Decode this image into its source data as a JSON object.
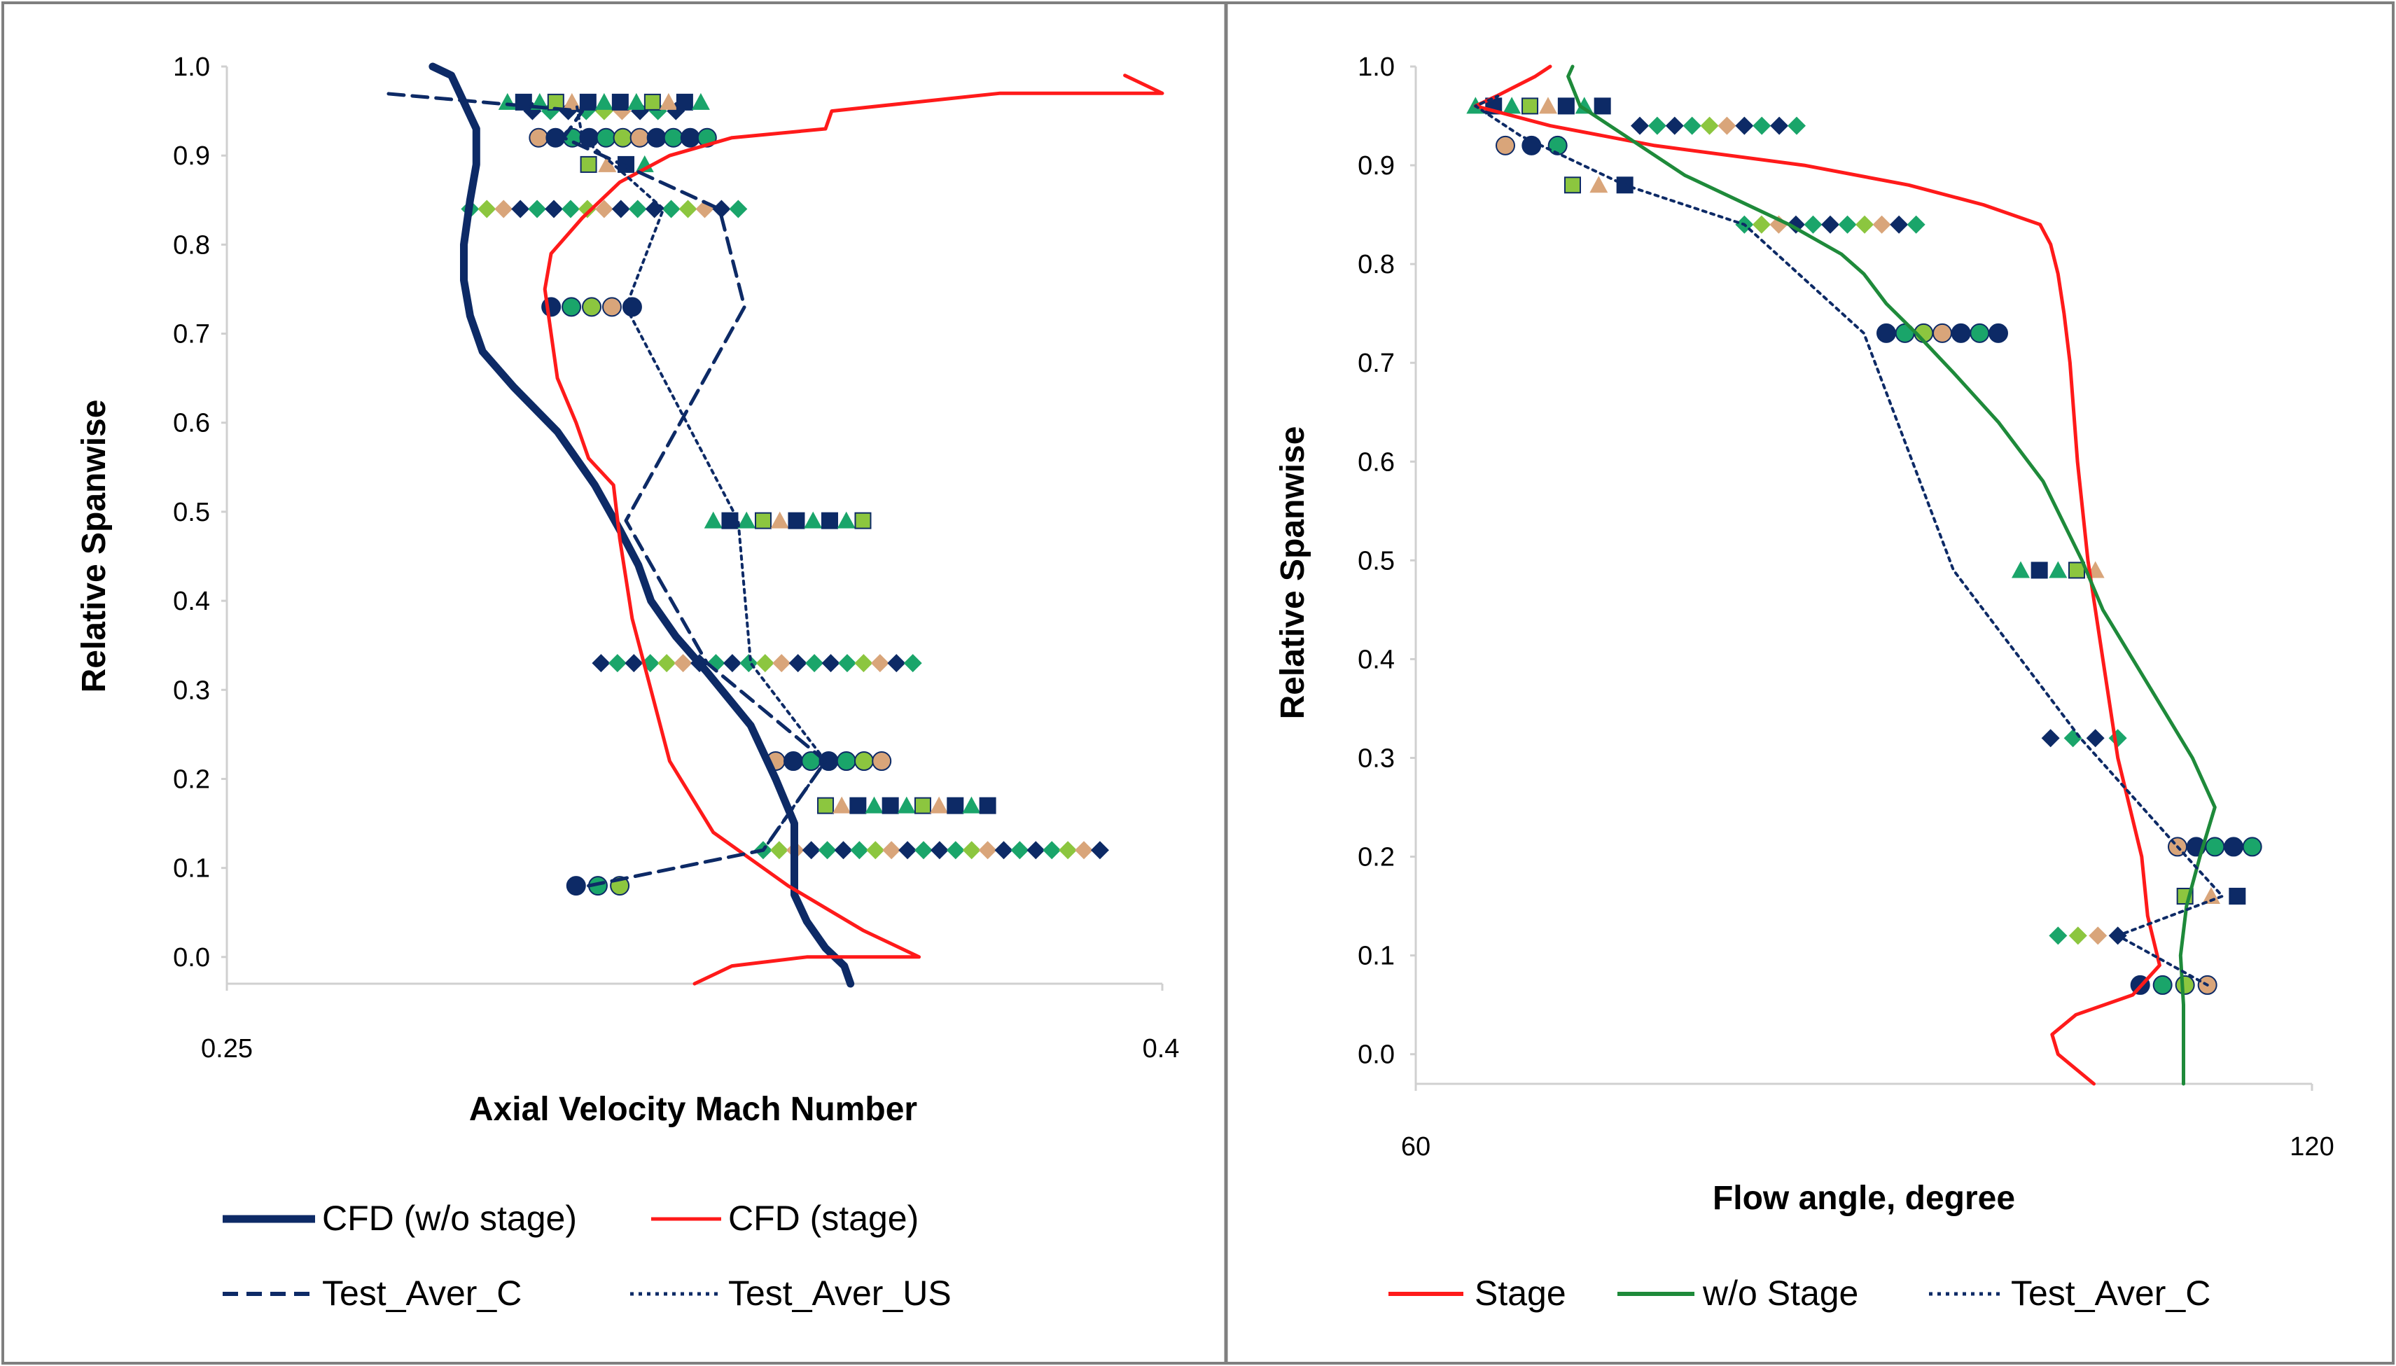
{
  "chart_data": [
    {
      "type": "line",
      "title": "",
      "xlabel": "Axial Velocity Mach Number",
      "ylabel": "Relative Spanwise",
      "xlim": [
        0.25,
        0.4
      ],
      "ylim": [
        -0.03,
        1.0
      ],
      "xticks": [
        "0.25",
        "0.4"
      ],
      "yticks": [
        "0.0",
        "0.1",
        "0.2",
        "0.3",
        "0.4",
        "0.5",
        "0.6",
        "0.7",
        "0.8",
        "0.9",
        "1.0"
      ],
      "legend_position": "bottom",
      "series": [
        {
          "name": "CFD (w/o stage)",
          "style": "solid-thick",
          "color": "#0d2a66",
          "x": [
            0.35,
            0.349,
            0.346,
            0.343,
            0.341,
            0.341,
            0.341,
            0.338,
            0.334,
            0.327,
            0.322,
            0.318,
            0.316,
            0.313,
            0.309,
            0.303,
            0.296,
            0.291,
            0.289,
            0.288,
            0.288,
            0.289,
            0.29,
            0.29,
            0.288,
            0.286,
            0.283
          ],
          "y": [
            -0.03,
            -0.01,
            0.01,
            0.04,
            0.07,
            0.1,
            0.15,
            0.2,
            0.26,
            0.32,
            0.36,
            0.4,
            0.44,
            0.48,
            0.53,
            0.59,
            0.64,
            0.68,
            0.72,
            0.76,
            0.8,
            0.85,
            0.89,
            0.93,
            0.96,
            0.99,
            1.0
          ]
        },
        {
          "name": "CFD (stage)",
          "style": "solid",
          "color": "#ff1a1a",
          "x": [
            0.325,
            0.331,
            0.343,
            0.361,
            0.352,
            0.34,
            0.328,
            0.321,
            0.318,
            0.315,
            0.313,
            0.312,
            0.308,
            0.306,
            0.303,
            0.302,
            0.301,
            0.302,
            0.307,
            0.313,
            0.321,
            0.331,
            0.346,
            0.347,
            0.374,
            0.4,
            0.394
          ],
          "y": [
            -0.03,
            -0.01,
            0.0,
            0.0,
            0.03,
            0.08,
            0.14,
            0.22,
            0.3,
            0.38,
            0.47,
            0.53,
            0.56,
            0.6,
            0.65,
            0.7,
            0.75,
            0.79,
            0.83,
            0.87,
            0.9,
            0.92,
            0.93,
            0.95,
            0.97,
            0.97,
            0.99
          ]
        },
        {
          "name": "Test_Aver_C",
          "style": "dashed",
          "color": "#0d2a66",
          "x": [
            0.308,
            0.336,
            0.346,
            0.327,
            0.314,
            0.333,
            0.329,
            0.304,
            0.307,
            0.275
          ],
          "y": [
            0.08,
            0.12,
            0.22,
            0.33,
            0.49,
            0.73,
            0.84,
            0.92,
            0.95,
            0.97
          ]
        },
        {
          "name": "Test_Aver_US",
          "style": "dotted",
          "color": "#0d2a66",
          "x": [
            0.336,
            0.346,
            0.334,
            0.332,
            0.314,
            0.32,
            0.312,
            0.307,
            0.306
          ],
          "y": [
            0.12,
            0.22,
            0.33,
            0.49,
            0.73,
            0.84,
            0.89,
            0.92,
            0.96
          ]
        }
      ]
    },
    {
      "type": "line",
      "title": "",
      "xlabel": "Flow angle, degree",
      "ylabel": "Relative Spanwise",
      "xlim": [
        60,
        120
      ],
      "ylim": [
        -0.03,
        1.0
      ],
      "xticks": [
        "60",
        "120"
      ],
      "yticks": [
        "0.0",
        "0.1",
        "0.2",
        "0.3",
        "0.4",
        "0.5",
        "0.6",
        "0.7",
        "0.8",
        "0.9",
        "1.0"
      ],
      "legend_position": "bottom",
      "series": [
        {
          "name": "Stage",
          "style": "solid",
          "color": "#ff1a1a",
          "x": [
            105.4,
            103.0,
            102.6,
            104.2,
            108.0,
            109.8,
            109.0,
            108.6,
            107.0,
            106.0,
            105.0,
            104.3,
            103.8,
            103.4,
            103.0,
            102.5,
            101.8,
            98.0,
            93.0,
            86.0,
            76.0,
            69.0,
            64.0,
            65.4,
            68.0,
            69.0
          ],
          "y": [
            -0.03,
            0.0,
            0.02,
            0.04,
            0.06,
            0.09,
            0.14,
            0.2,
            0.3,
            0.4,
            0.5,
            0.6,
            0.7,
            0.75,
            0.79,
            0.82,
            0.84,
            0.86,
            0.88,
            0.9,
            0.92,
            0.94,
            0.96,
            0.97,
            0.99,
            1.0
          ]
        },
        {
          "name": "w/o Stage",
          "style": "solid",
          "color": "#1e8a3a",
          "x": [
            111.4,
            111.4,
            111.2,
            111.6,
            112.5,
            113.5,
            112.0,
            110.0,
            108.0,
            106.0,
            104.6,
            102.0,
            99.0,
            96.0,
            93.5,
            91.5,
            90.0,
            88.5,
            85.0,
            78.0,
            74.0,
            71.0,
            70.2,
            70.5
          ],
          "y": [
            -0.03,
            0.05,
            0.1,
            0.15,
            0.2,
            0.25,
            0.3,
            0.35,
            0.4,
            0.45,
            0.5,
            0.58,
            0.64,
            0.69,
            0.73,
            0.76,
            0.79,
            0.81,
            0.84,
            0.89,
            0.93,
            0.96,
            0.99,
            1.0
          ]
        },
        {
          "name": "Test_Aver_C",
          "style": "dotted",
          "color": "#0d2a66",
          "x": [
            113.0,
            107.0,
            114.0,
            111.0,
            104.5,
            96.0,
            90.0,
            82.0,
            74.0,
            67.0,
            64.0,
            65.5
          ],
          "y": [
            0.07,
            0.12,
            0.16,
            0.21,
            0.32,
            0.49,
            0.73,
            0.84,
            0.88,
            0.93,
            0.96,
            0.97
          ]
        }
      ]
    }
  ],
  "legends": [
    {
      "items": [
        "CFD (w/o stage)",
        "CFD (stage)",
        "Test_Aver_C",
        "Test_Aver_US"
      ]
    },
    {
      "items": [
        "Stage",
        "w/o Stage",
        "Test_Aver_C"
      ]
    }
  ],
  "markers": [
    {
      "name": "left-test-markers",
      "rows": [
        {
          "y": 0.08,
          "xmin": 0.306,
          "xmax": 0.313
        },
        {
          "y": 0.12,
          "xmin": 0.336,
          "xmax": 0.39
        },
        {
          "y": 0.17,
          "xmin": 0.346,
          "xmax": 0.372
        },
        {
          "y": 0.22,
          "xmin": 0.338,
          "xmax": 0.355
        },
        {
          "y": 0.33,
          "xmin": 0.31,
          "xmax": 0.36
        },
        {
          "y": 0.49,
          "xmin": 0.328,
          "xmax": 0.352
        },
        {
          "y": 0.73,
          "xmin": 0.302,
          "xmax": 0.315
        },
        {
          "y": 0.84,
          "xmin": 0.289,
          "xmax": 0.332
        },
        {
          "y": 0.89,
          "xmin": 0.308,
          "xmax": 0.317
        },
        {
          "y": 0.92,
          "xmin": 0.3,
          "xmax": 0.327
        },
        {
          "y": 0.95,
          "xmin": 0.299,
          "xmax": 0.322
        },
        {
          "y": 0.96,
          "xmin": 0.295,
          "xmax": 0.326
        }
      ]
    },
    {
      "name": "right-test-markers",
      "rows": [
        {
          "y": 0.07,
          "xmin": 108.5,
          "xmax": 113.0
        },
        {
          "y": 0.12,
          "xmin": 103.0,
          "xmax": 107.0
        },
        {
          "y": 0.16,
          "xmin": 111.5,
          "xmax": 115.0
        },
        {
          "y": 0.21,
          "xmin": 111.0,
          "xmax": 116.0
        },
        {
          "y": 0.32,
          "xmin": 102.5,
          "xmax": 107.0
        },
        {
          "y": 0.49,
          "xmin": 100.5,
          "xmax": 105.5
        },
        {
          "y": 0.73,
          "xmin": 91.5,
          "xmax": 99.0
        },
        {
          "y": 0.84,
          "xmin": 82.0,
          "xmax": 93.5
        },
        {
          "y": 0.88,
          "xmin": 70.5,
          "xmax": 74.0
        },
        {
          "y": 0.92,
          "xmin": 66.0,
          "xmax": 69.5
        },
        {
          "y": 0.94,
          "xmin": 75.0,
          "xmax": 85.5
        },
        {
          "y": 0.96,
          "xmin": 64.0,
          "xmax": 72.5
        }
      ]
    }
  ],
  "colors": {
    "navy": "#0d2a66",
    "red": "#ff1a1a",
    "green": "#1e8a3a",
    "teal": "#1aa56a",
    "lime": "#8cc63f",
    "tan": "#d9a57a",
    "frame": "#7f7f7f"
  }
}
